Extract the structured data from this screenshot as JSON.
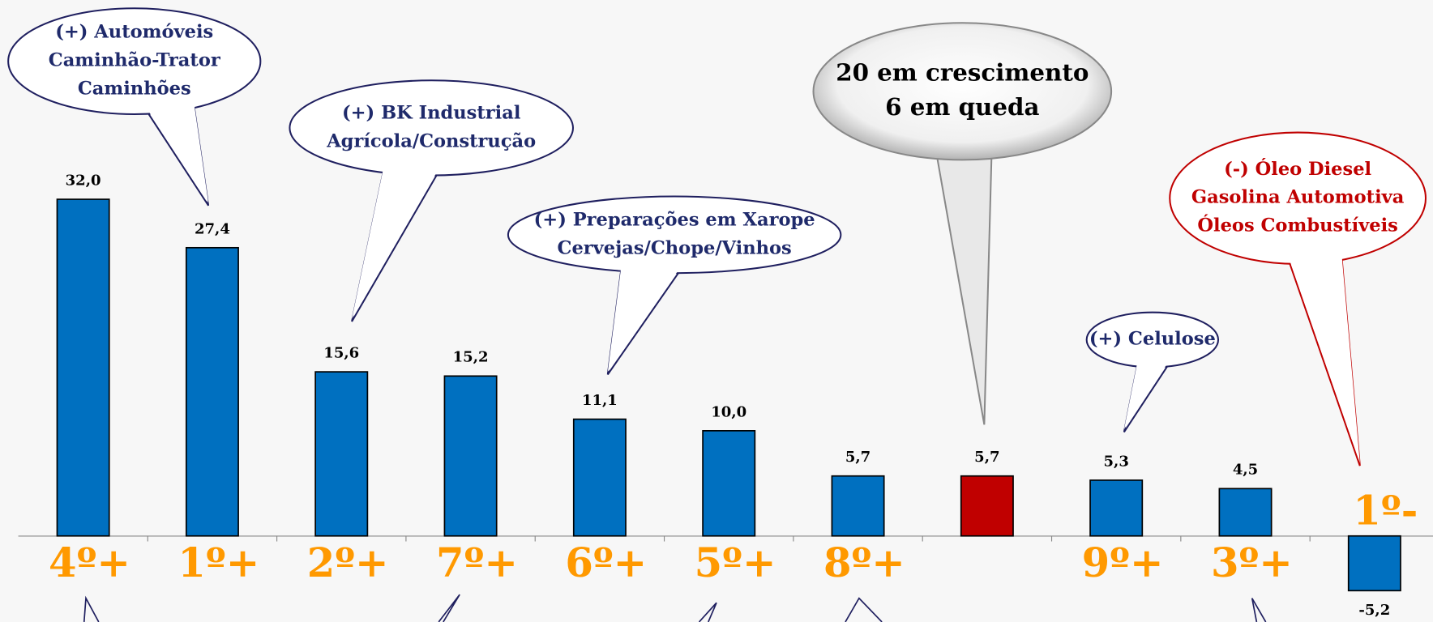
{
  "chart_data": {
    "type": "bar",
    "categories": [
      "4º+",
      "1º+",
      "2º+",
      "7º+",
      "6º+",
      "5º+",
      "8º+",
      null,
      "9º+",
      "3º+",
      "1º-"
    ],
    "values": [
      32.0,
      27.4,
      15.6,
      15.2,
      11.1,
      10.0,
      5.7,
      5.7,
      5.3,
      4.5,
      -5.2
    ],
    "value_labels": [
      "32,0",
      "27,4",
      "15,6",
      "15,2",
      "11,1",
      "10,0",
      "5,7",
      "5,7",
      "5,3",
      "4,5",
      "-5,2"
    ],
    "colors": [
      "#0070c0",
      "#0070c0",
      "#0070c0",
      "#0070c0",
      "#0070c0",
      "#0070c0",
      "#0070c0",
      "#c00000",
      "#0070c0",
      "#0070c0",
      "#0070c0"
    ],
    "ylim": [
      -8,
      40
    ],
    "annotations": [
      [
        "(+) Automóveis",
        "Caminhão-Trator",
        "Caminhões"
      ],
      [
        "(+) BK Industrial",
        "Agrícola/Construção"
      ],
      [
        "(+) Preparações em Xarope",
        "Cervejas/Chope/Vinhos"
      ],
      [
        "20 em crescimento",
        "6 em queda"
      ],
      [
        "(+) Celulose"
      ],
      [
        "(-) Óleo Diesel",
        "Gasolina Automotiva",
        "Óleos Combustíveis"
      ]
    ]
  }
}
